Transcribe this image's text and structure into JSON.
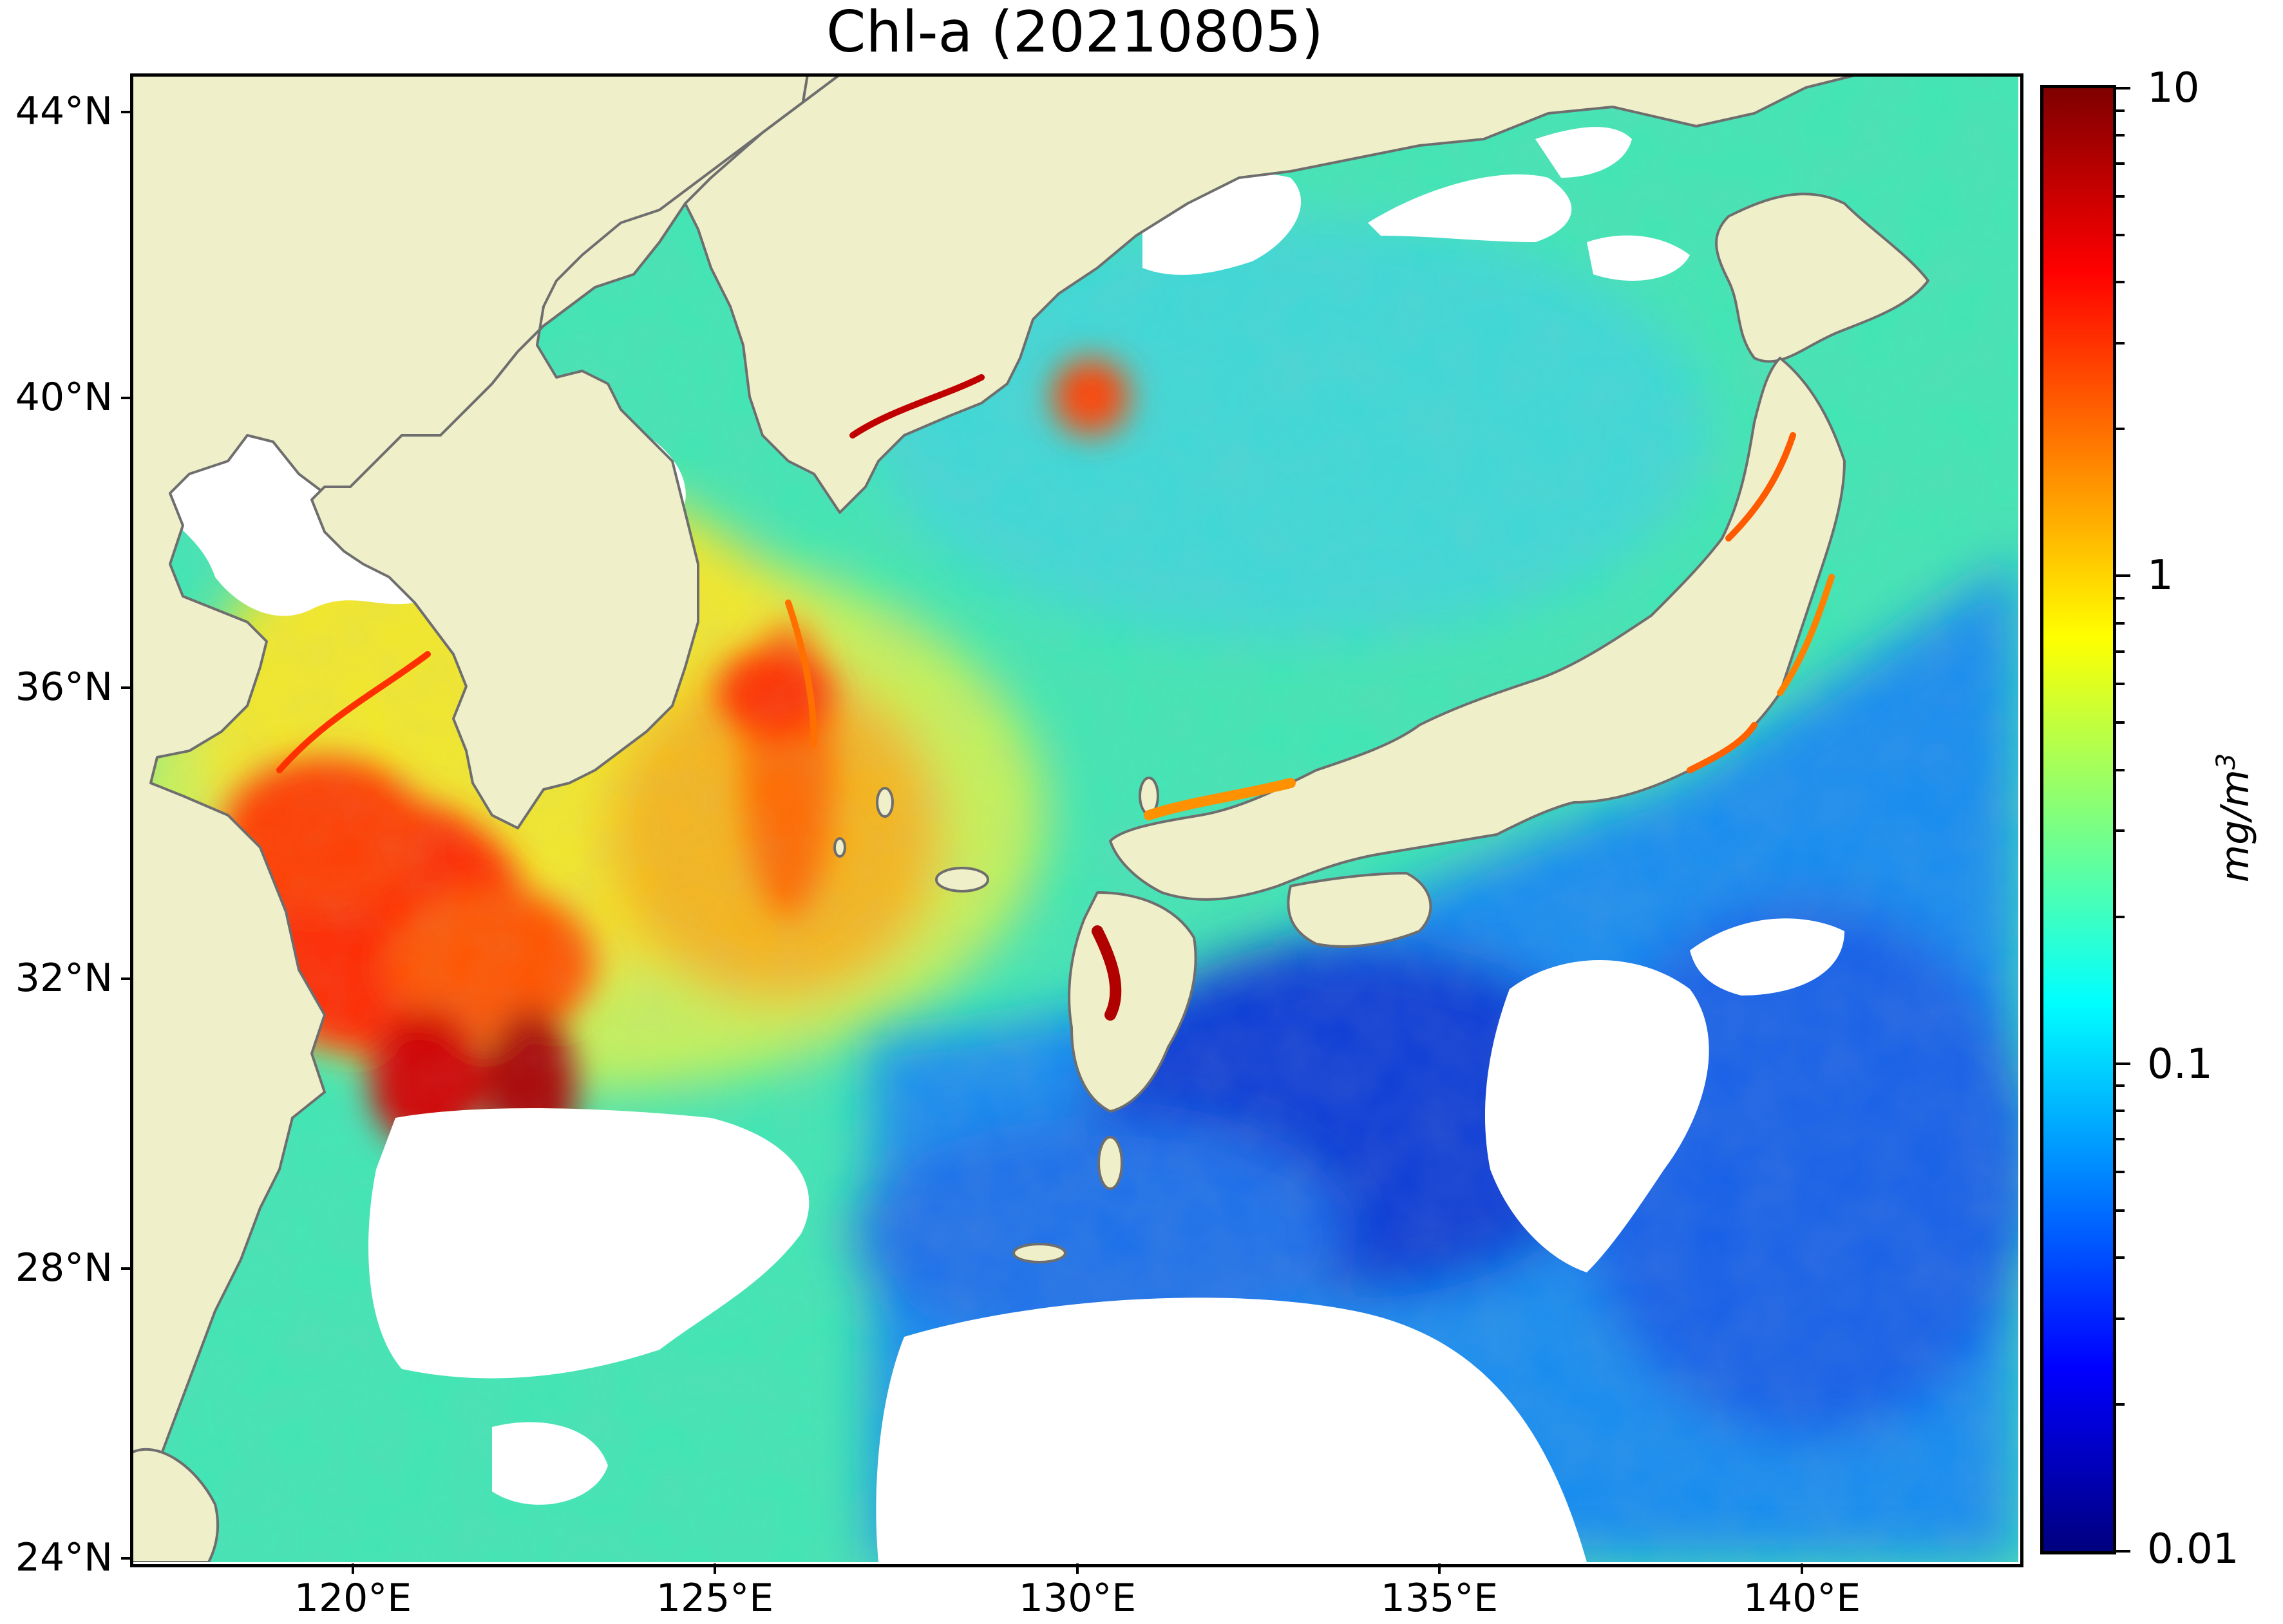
{
  "title": "Chl-a (20210805)",
  "axes": {
    "y_ticks": [
      "44°N",
      "40°N",
      "36°N",
      "32°N",
      "28°N",
      "24°N"
    ],
    "x_ticks": [
      "120°E",
      "125°E",
      "130°E",
      "135°E",
      "140°E"
    ],
    "extent": {
      "lon": [
        117,
        143
      ],
      "lat": [
        24,
        44.5
      ]
    }
  },
  "colorbar": {
    "labels": [
      "10",
      "1",
      "0.1",
      "0.01"
    ],
    "unit": "mg/m3",
    "scale": "log",
    "range": [
      0.01,
      10
    ],
    "colormap": "jet"
  },
  "colors": {
    "land": "#efefca",
    "no_data": "#ffffff",
    "coastline": "#6e6e6e",
    "low_chl": "#0a3cd6",
    "high_chl": "#a00000"
  }
}
